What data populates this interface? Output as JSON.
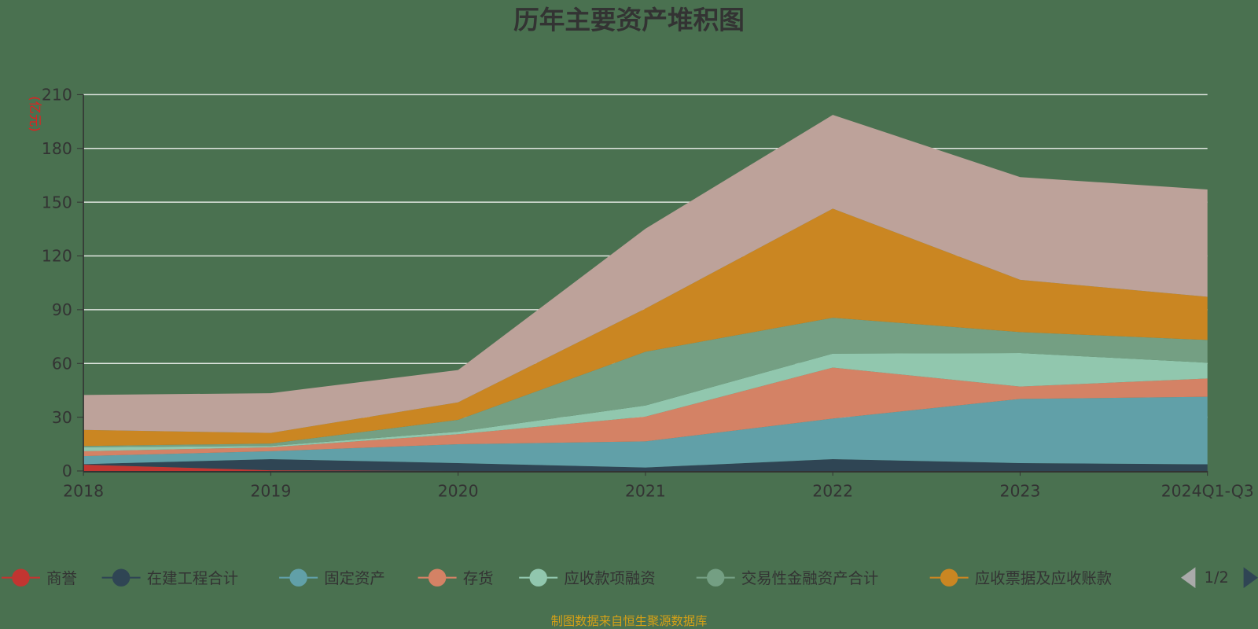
{
  "chart_data": {
    "type": "area",
    "stacked": true,
    "title": "历年主要资产堆积图",
    "ylabel": "(亿元)",
    "xlabel": "",
    "categories": [
      "2018",
      "2019",
      "2020",
      "2021",
      "2022",
      "2023",
      "2024Q1-Q3"
    ],
    "ylim": [
      0,
      210
    ],
    "yticks": [
      0,
      30,
      60,
      90,
      120,
      150,
      180,
      210
    ],
    "grid": true,
    "legend_position": "bottom",
    "legend_page": "1/2",
    "series": [
      {
        "name": "商誉",
        "color": "#c23531",
        "values": [
          3.5,
          0.4,
          0,
          0,
          0,
          0,
          0
        ]
      },
      {
        "name": "在建工程合计",
        "color": "#2f4554",
        "values": [
          0.3,
          6.2,
          4.4,
          1.9,
          6.6,
          4.4,
          3.7
        ]
      },
      {
        "name": "固定资产",
        "color": "#61a0a8",
        "values": [
          4.5,
          4.4,
          10.5,
          14.6,
          22.6,
          35.8,
          37.7
        ]
      },
      {
        "name": "存货",
        "color": "#d48265",
        "values": [
          2.7,
          2.2,
          5.6,
          13.8,
          28.5,
          6.9,
          10.2
        ]
      },
      {
        "name": "应收款项融资",
        "color": "#91c7ae",
        "values": [
          2.2,
          0.7,
          1.4,
          6.2,
          7.8,
          18.7,
          8.8
        ]
      },
      {
        "name": "交易性金融资产合计",
        "color": "#749f83",
        "values": [
          0.7,
          1.4,
          6.6,
          30.0,
          20.0,
          11.7,
          12.7
        ]
      },
      {
        "name": "应收票据及应收账款",
        "color": "#ca8622",
        "values": [
          9.0,
          5.9,
          9.8,
          24.1,
          60.9,
          29.2,
          24.1
        ]
      },
      {
        "color": "#bda29a",
        "values": [
          19.5,
          22.2,
          18.0,
          44.6,
          52.3,
          57.3,
          59.9
        ]
      }
    ]
  },
  "footer": "制图数据来自恒生聚源数据库",
  "colors": {
    "background": "#4a7150",
    "text": "#333333",
    "grid": "#e0e6e0",
    "unit_label": "#e02020",
    "footer": "#d4a017"
  }
}
